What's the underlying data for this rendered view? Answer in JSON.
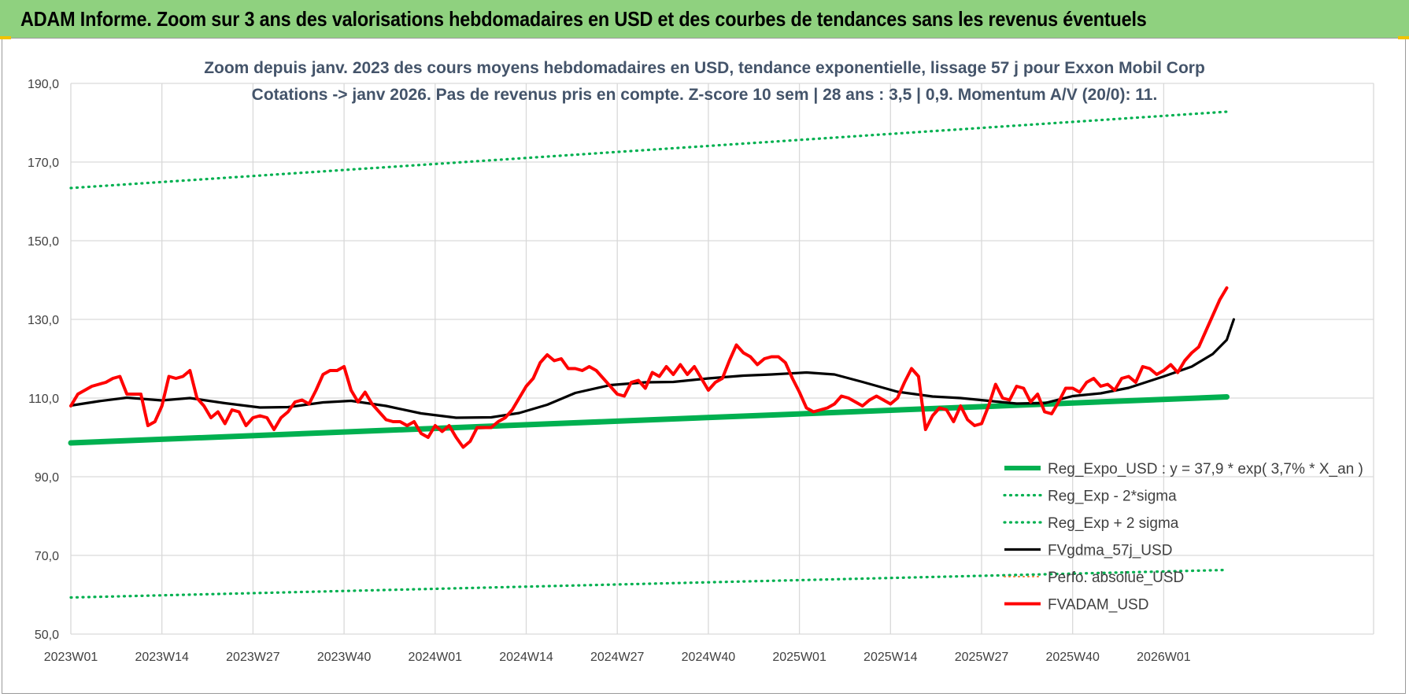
{
  "banner": {
    "title": "ADAM Informe. Zoom sur 3 ans des valorisations hebdomadaires en USD et des courbes de tendances sans les revenus éventuels"
  },
  "colors": {
    "banner_bg": "#8fd17f",
    "reg_expo": "#00b050",
    "fvgdma": "#000000",
    "fvadam": "#ff0000",
    "perfo": "#ed7d31",
    "grid": "#d9d9d9"
  },
  "chart_data": {
    "type": "line",
    "title_line1": "Zoom depuis janv. 2023 des cours moyens hebdomadaires en USD, tendance exponentielle, lissage 57 j pour Exxon Mobil Corp",
    "title_line2": "Cotations -> janv 2026. Pas de revenus pris en compte. Z-score 10 sem | 28 ans : 3,5 | 0,9. Momentum A/V (20/0): 11.",
    "x_tick_labels": [
      "2023W01",
      "2023W14",
      "2023W27",
      "2023W40",
      "2024W01",
      "2024W14",
      "2024W27",
      "2024W40",
      "2025W01",
      "2025W14",
      "2025W27",
      "2025W40",
      "2026W01"
    ],
    "y_tick_labels": [
      "50,0",
      "70,0",
      "90,0",
      "110,0",
      "130,0",
      "150,0",
      "170,0",
      "190,0"
    ],
    "ylim": [
      50,
      190
    ],
    "weeks_count": 166,
    "grid": true,
    "legend_position": "bottom-right",
    "series": [
      {
        "name": "Reg_Expo_USD : y = 37,9 * exp( 3,7% *  X_an )",
        "style": "solid-thick",
        "color": "#00b050",
        "points": [
          [
            0,
            98.6
          ],
          [
            165,
            110.3
          ]
        ]
      },
      {
        "name": "Reg_Exp - 2*sigma",
        "style": "dotted",
        "color": "#00b050",
        "points": [
          [
            0,
            59.3
          ],
          [
            165,
            66.3
          ]
        ]
      },
      {
        "name": "Reg_Exp + 2 sigma",
        "style": "dotted",
        "color": "#00b050",
        "points": [
          [
            0,
            163.4
          ],
          [
            165,
            182.8
          ]
        ]
      },
      {
        "name": "FVgdma_57j_USD",
        "style": "solid",
        "color": "#000000",
        "points": [
          [
            0,
            108.1
          ],
          [
            4,
            109.2
          ],
          [
            8,
            110.1
          ],
          [
            13,
            109.4
          ],
          [
            17,
            110.0
          ],
          [
            22,
            108.7
          ],
          [
            27,
            107.6
          ],
          [
            31,
            107.7
          ],
          [
            36,
            108.9
          ],
          [
            40,
            109.3
          ],
          [
            45,
            108.0
          ],
          [
            50,
            106.1
          ],
          [
            55,
            105.0
          ],
          [
            60,
            105.1
          ],
          [
            64,
            106.2
          ],
          [
            68,
            108.3
          ],
          [
            72,
            111.3
          ],
          [
            77,
            113.3
          ],
          [
            82,
            114.0
          ],
          [
            86,
            114.1
          ],
          [
            91,
            115.0
          ],
          [
            96,
            115.7
          ],
          [
            100,
            116.0
          ],
          [
            105,
            116.5
          ],
          [
            109,
            116.0
          ],
          [
            113,
            114.1
          ],
          [
            118,
            111.6
          ],
          [
            123,
            110.4
          ],
          [
            127,
            110.0
          ],
          [
            131,
            109.3
          ],
          [
            135,
            108.6
          ],
          [
            139,
            108.7
          ],
          [
            143,
            110.5
          ],
          [
            147,
            111.2
          ],
          [
            151,
            112.6
          ],
          [
            156,
            115.5
          ],
          [
            160,
            118.0
          ],
          [
            163,
            121.2
          ],
          [
            165,
            124.8
          ],
          [
            166,
            130.0
          ]
        ]
      },
      {
        "name": "Perfo. absolue_USD",
        "style": "dotted-thin",
        "color": "#ed7d31",
        "points": []
      },
      {
        "name": "FVADAM_USD",
        "style": "solid-thick",
        "color": "#ff0000",
        "points": [
          [
            0,
            108.0
          ],
          [
            1,
            111.0
          ],
          [
            2,
            112.0
          ],
          [
            3,
            113.0
          ],
          [
            4,
            113.5
          ],
          [
            5,
            114.0
          ],
          [
            6,
            115.0
          ],
          [
            7,
            115.5
          ],
          [
            8,
            111.0
          ],
          [
            9,
            111.0
          ],
          [
            10,
            111.0
          ],
          [
            11,
            103.0
          ],
          [
            12,
            104.0
          ],
          [
            13,
            108.0
          ],
          [
            14,
            115.5
          ],
          [
            15,
            115.0
          ],
          [
            16,
            115.5
          ],
          [
            17,
            117.0
          ],
          [
            18,
            110.0
          ],
          [
            19,
            108.0
          ],
          [
            20,
            105.0
          ],
          [
            21,
            106.5
          ],
          [
            22,
            103.5
          ],
          [
            23,
            107.0
          ],
          [
            24,
            106.5
          ],
          [
            25,
            103.0
          ],
          [
            26,
            105.0
          ],
          [
            27,
            105.5
          ],
          [
            28,
            105.0
          ],
          [
            29,
            102.0
          ],
          [
            30,
            105.0
          ],
          [
            31,
            106.5
          ],
          [
            32,
            109.0
          ],
          [
            33,
            109.5
          ],
          [
            34,
            108.5
          ],
          [
            35,
            112.0
          ],
          [
            36,
            116.0
          ],
          [
            37,
            117.0
          ],
          [
            38,
            117.0
          ],
          [
            39,
            118.0
          ],
          [
            40,
            112.0
          ],
          [
            41,
            109.0
          ],
          [
            42,
            111.5
          ],
          [
            43,
            108.5
          ],
          [
            44,
            106.5
          ],
          [
            45,
            104.5
          ],
          [
            46,
            104.0
          ],
          [
            47,
            104.0
          ],
          [
            48,
            103.0
          ],
          [
            49,
            104.0
          ],
          [
            50,
            101.0
          ],
          [
            51,
            100.0
          ],
          [
            52,
            103.0
          ],
          [
            53,
            101.5
          ],
          [
            54,
            103.0
          ],
          [
            55,
            100.0
          ],
          [
            56,
            97.5
          ],
          [
            57,
            99.0
          ],
          [
            58,
            102.5
          ],
          [
            59,
            102.5
          ],
          [
            60,
            102.5
          ],
          [
            61,
            104.0
          ],
          [
            62,
            105.0
          ],
          [
            63,
            107.0
          ],
          [
            64,
            110.0
          ],
          [
            65,
            113.0
          ],
          [
            66,
            115.0
          ],
          [
            67,
            119.0
          ],
          [
            68,
            121.0
          ],
          [
            69,
            119.5
          ],
          [
            70,
            120.0
          ],
          [
            71,
            117.5
          ],
          [
            72,
            117.5
          ],
          [
            73,
            117.0
          ],
          [
            74,
            118.0
          ],
          [
            75,
            117.0
          ],
          [
            76,
            115.0
          ],
          [
            77,
            113.0
          ],
          [
            78,
            111.0
          ],
          [
            79,
            110.5
          ],
          [
            80,
            114.0
          ],
          [
            81,
            114.5
          ],
          [
            82,
            112.5
          ],
          [
            83,
            116.5
          ],
          [
            84,
            115.5
          ],
          [
            85,
            118.0
          ],
          [
            86,
            116.0
          ],
          [
            87,
            118.5
          ],
          [
            88,
            116.0
          ],
          [
            89,
            118.0
          ],
          [
            90,
            115.0
          ],
          [
            91,
            112.0
          ],
          [
            92,
            114.0
          ],
          [
            93,
            115.0
          ],
          [
            94,
            119.5
          ],
          [
            95,
            123.5
          ],
          [
            96,
            121.5
          ],
          [
            97,
            120.5
          ],
          [
            98,
            118.5
          ],
          [
            99,
            120.0
          ],
          [
            100,
            120.5
          ],
          [
            101,
            120.5
          ],
          [
            102,
            119.0
          ],
          [
            103,
            115.0
          ],
          [
            104,
            111.5
          ],
          [
            105,
            107.5
          ],
          [
            106,
            106.5
          ],
          [
            107,
            107.0
          ],
          [
            108,
            107.5
          ],
          [
            109,
            108.5
          ],
          [
            110,
            110.5
          ],
          [
            111,
            110.0
          ],
          [
            112,
            109.0
          ],
          [
            113,
            108.0
          ],
          [
            114,
            109.5
          ],
          [
            115,
            110.5
          ],
          [
            116,
            109.5
          ],
          [
            117,
            108.5
          ],
          [
            118,
            110.0
          ],
          [
            119,
            114.0
          ],
          [
            120,
            117.5
          ],
          [
            121,
            115.5
          ],
          [
            122,
            102.0
          ],
          [
            123,
            105.5
          ],
          [
            124,
            107.5
          ],
          [
            125,
            107.0
          ],
          [
            126,
            104.0
          ],
          [
            127,
            108.0
          ],
          [
            128,
            104.5
          ],
          [
            129,
            103.0
          ],
          [
            130,
            103.5
          ],
          [
            131,
            108.0
          ],
          [
            132,
            113.5
          ],
          [
            133,
            110.0
          ],
          [
            134,
            109.5
          ],
          [
            135,
            113.0
          ],
          [
            136,
            112.5
          ],
          [
            137,
            109.0
          ],
          [
            138,
            111.0
          ],
          [
            139,
            106.5
          ],
          [
            140,
            106.0
          ],
          [
            141,
            109.0
          ],
          [
            142,
            112.5
          ],
          [
            143,
            112.5
          ],
          [
            144,
            111.5
          ],
          [
            145,
            114.0
          ],
          [
            146,
            115.0
          ],
          [
            147,
            113.0
          ],
          [
            148,
            113.5
          ],
          [
            149,
            112.0
          ],
          [
            150,
            115.0
          ],
          [
            151,
            115.5
          ],
          [
            152,
            114.0
          ],
          [
            153,
            118.0
          ],
          [
            154,
            117.5
          ],
          [
            155,
            116.0
          ],
          [
            156,
            117.0
          ],
          [
            157,
            118.5
          ],
          [
            158,
            116.5
          ],
          [
            159,
            119.5
          ],
          [
            160,
            121.5
          ],
          [
            161,
            123.0
          ],
          [
            162,
            127.0
          ],
          [
            163,
            131.0
          ],
          [
            164,
            135.0
          ],
          [
            165,
            138.0
          ]
        ]
      }
    ]
  }
}
